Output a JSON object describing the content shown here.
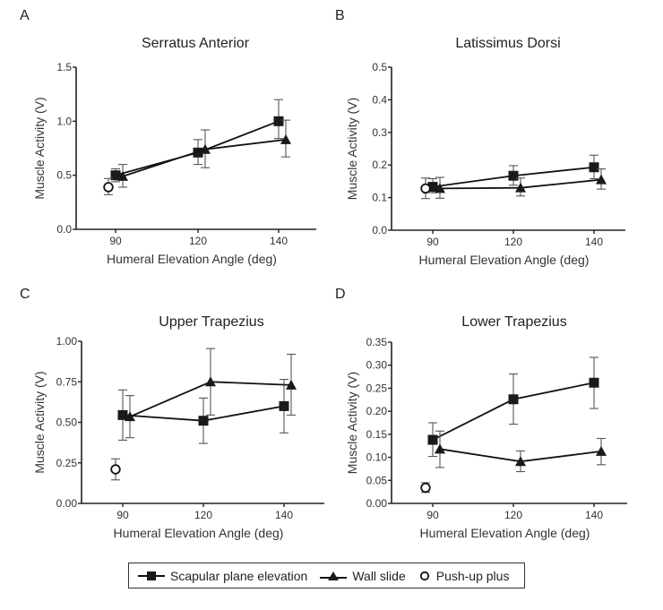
{
  "chart_data": [
    {
      "type": "line",
      "panel": "A",
      "title": "Serratus Anterior",
      "xlabel": "Humeral Elevation Angle (deg)",
      "ylabel": "Muscle Activity (V)",
      "xticks": [
        "90",
        "120",
        "140"
      ],
      "yticks": [
        "0.0",
        "0.5",
        "1.0",
        "1.5"
      ],
      "ylim": [
        0,
        1.5
      ],
      "series": [
        {
          "name": "Scapular plane elevation",
          "marker": "square",
          "x": [
            90,
            120,
            140
          ],
          "values": [
            0.5,
            0.71,
            1.0
          ],
          "err_low": [
            0.44,
            0.6,
            0.84
          ],
          "err_high": [
            0.56,
            0.83,
            1.2
          ]
        },
        {
          "name": "Wall slide",
          "marker": "triangle",
          "x": [
            90,
            120,
            140
          ],
          "values": [
            0.49,
            0.74,
            0.83
          ],
          "err_low": [
            0.39,
            0.57,
            0.67
          ],
          "err_high": [
            0.6,
            0.92,
            1.01
          ]
        },
        {
          "name": "Push-up plus",
          "marker": "circle",
          "x": [
            90
          ],
          "values": [
            0.39
          ],
          "err_low": [
            0.32
          ],
          "err_high": [
            0.47
          ]
        }
      ]
    },
    {
      "type": "line",
      "panel": "B",
      "title": "Latissimus Dorsi",
      "xlabel": "Humeral Elevation Angle (deg)",
      "ylabel": "Muscle Activity (V)",
      "xticks": [
        "90",
        "120",
        "140"
      ],
      "yticks": [
        "0.0",
        "0.1",
        "0.2",
        "0.3",
        "0.4",
        "0.5"
      ],
      "ylim": [
        0,
        0.5
      ],
      "series": [
        {
          "name": "Scapular plane elevation",
          "marker": "square",
          "x": [
            90,
            120,
            140
          ],
          "values": [
            0.133,
            0.167,
            0.193
          ],
          "err_low": [
            0.115,
            0.138,
            0.158
          ],
          "err_high": [
            0.158,
            0.198,
            0.23
          ]
        },
        {
          "name": "Wall slide",
          "marker": "triangle",
          "x": [
            90,
            120,
            140
          ],
          "values": [
            0.128,
            0.13,
            0.155
          ],
          "err_low": [
            0.098,
            0.105,
            0.126
          ],
          "err_high": [
            0.162,
            0.16,
            0.188
          ]
        },
        {
          "name": "Push-up plus",
          "marker": "circle",
          "x": [
            90
          ],
          "values": [
            0.128
          ],
          "err_low": [
            0.097
          ],
          "err_high": [
            0.16
          ]
        }
      ]
    },
    {
      "type": "line",
      "panel": "C",
      "title": "Upper Trapezius",
      "xlabel": "Humeral Elevation Angle (deg)",
      "ylabel": "Muscle Activity (V)",
      "xticks": [
        "90",
        "120",
        "140"
      ],
      "yticks": [
        "0.00",
        "0.25",
        "0.50",
        "0.75",
        "1.00"
      ],
      "ylim": [
        0,
        1.0
      ],
      "series": [
        {
          "name": "Scapular plane elevation",
          "marker": "square",
          "x": [
            90,
            120,
            140
          ],
          "values": [
            0.545,
            0.51,
            0.6
          ],
          "err_low": [
            0.39,
            0.37,
            0.435
          ],
          "err_high": [
            0.7,
            0.65,
            0.765
          ]
        },
        {
          "name": "Wall slide",
          "marker": "triangle",
          "x": [
            90,
            120,
            140
          ],
          "values": [
            0.535,
            0.75,
            0.73
          ],
          "err_low": [
            0.405,
            0.545,
            0.545
          ],
          "err_high": [
            0.665,
            0.955,
            0.92
          ]
        },
        {
          "name": "Push-up plus",
          "marker": "circle",
          "x": [
            90
          ],
          "values": [
            0.21
          ],
          "err_low": [
            0.145
          ],
          "err_high": [
            0.275
          ]
        }
      ]
    },
    {
      "type": "line",
      "panel": "D",
      "title": "Lower Trapezius",
      "xlabel": "Humeral Elevation Angle (deg)",
      "ylabel": "Muscle Activity (V)",
      "xticks": [
        "90",
        "120",
        "140"
      ],
      "yticks": [
        "0.00",
        "0.05",
        "0.10",
        "0.15",
        "0.20",
        "0.25",
        "0.30",
        "0.35"
      ],
      "ylim": [
        0,
        0.35
      ],
      "series": [
        {
          "name": "Scapular plane elevation",
          "marker": "square",
          "x": [
            90,
            120,
            140
          ],
          "values": [
            0.138,
            0.226,
            0.262
          ],
          "err_low": [
            0.102,
            0.172,
            0.206
          ],
          "err_high": [
            0.175,
            0.281,
            0.317
          ]
        },
        {
          "name": "Wall slide",
          "marker": "triangle",
          "x": [
            90,
            120,
            140
          ],
          "values": [
            0.118,
            0.091,
            0.113
          ],
          "err_low": [
            0.078,
            0.069,
            0.084
          ],
          "err_high": [
            0.157,
            0.114,
            0.141
          ]
        },
        {
          "name": "Push-up plus",
          "marker": "circle",
          "x": [
            90
          ],
          "values": [
            0.034
          ],
          "err_low": [
            0.024
          ],
          "err_high": [
            0.045
          ]
        }
      ]
    }
  ],
  "legend": {
    "position": "bottom-center",
    "items": [
      {
        "label": "Scapular plane elevation",
        "marker": "square-line"
      },
      {
        "label": "Wall slide",
        "marker": "triangle-line"
      },
      {
        "label": "Push-up plus",
        "marker": "open-circle"
      }
    ]
  }
}
